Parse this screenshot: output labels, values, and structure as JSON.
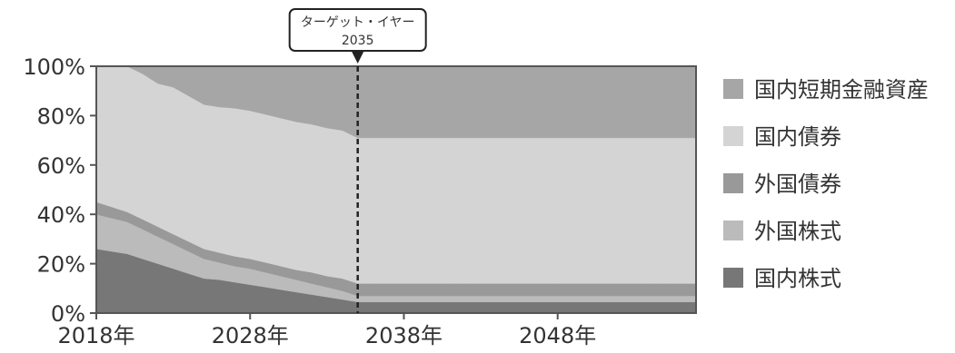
{
  "chart_data": {
    "type": "area",
    "stacked": true,
    "x_unit": "年",
    "x": [
      2018,
      2019,
      2020,
      2021,
      2022,
      2023,
      2024,
      2025,
      2026,
      2027,
      2028,
      2029,
      2030,
      2031,
      2032,
      2033,
      2034,
      2035,
      2036,
      2037,
      2038,
      2039,
      2040,
      2041,
      2042,
      2043,
      2044,
      2045,
      2046,
      2047,
      2048,
      2049,
      2050,
      2051,
      2052,
      2053,
      2054,
      2055,
      2056,
      2057
    ],
    "series": [
      {
        "name": "国内株式",
        "color": "#777777",
        "values": [
          26,
          25,
          24,
          22,
          20,
          18,
          16,
          14,
          13.5,
          12.5,
          11.5,
          10.5,
          9.5,
          8.5,
          7.5,
          6.5,
          5.5,
          4.5,
          4.5,
          4.5,
          4.5,
          4.5,
          4.5,
          4.5,
          4.5,
          4.5,
          4.5,
          4.5,
          4.5,
          4.5,
          4.5,
          4.5,
          4.5,
          4.5,
          4.5,
          4.5,
          4.5,
          4.5,
          4.5,
          4.5
        ]
      },
      {
        "name": "外国株式",
        "color": "#bbbbbb",
        "values": [
          14,
          13.5,
          13,
          12,
          11,
          10,
          9,
          8,
          7,
          6.5,
          6.5,
          6,
          5.5,
          5,
          4.5,
          4,
          3.5,
          2.5,
          2.5,
          2.5,
          2.5,
          2.5,
          2.5,
          2.5,
          2.5,
          2.5,
          2.5,
          2.5,
          2.5,
          2.5,
          2.5,
          2.5,
          2.5,
          2.5,
          2.5,
          2.5,
          2.5,
          2.5,
          2.5,
          2.5
        ]
      },
      {
        "name": "外国債券",
        "color": "#999999",
        "values": [
          5,
          4.5,
          4,
          4,
          4,
          4,
          4,
          4,
          4,
          4,
          4,
          4,
          4,
          4,
          4.5,
          4.5,
          5,
          5,
          5,
          5,
          5,
          5,
          5,
          5,
          5,
          5,
          5,
          5,
          5,
          5,
          5,
          5,
          5,
          5,
          5,
          5,
          5,
          5,
          5,
          5
        ]
      },
      {
        "name": "国内債券",
        "color": "#d4d4d4",
        "values": [
          55,
          57,
          59,
          59,
          58,
          59.5,
          59,
          58.5,
          59,
          60,
          60,
          60,
          60,
          60,
          60,
          60,
          60,
          59,
          59,
          59,
          59,
          59,
          59,
          59,
          59,
          59,
          59,
          59,
          59,
          59,
          59,
          59,
          59,
          59,
          59,
          59,
          59,
          59,
          59,
          59
        ]
      },
      {
        "name": "国内短期金融資産",
        "color": "#a6a6a6",
        "values": [
          0,
          0,
          0,
          3,
          7,
          8.5,
          12,
          15.5,
          16.5,
          17,
          18,
          19.5,
          21,
          22.5,
          23.5,
          25,
          26,
          29,
          29,
          29,
          29,
          29,
          29,
          29,
          29,
          29,
          29,
          29,
          29,
          29,
          29,
          29,
          29,
          29,
          29,
          29,
          29,
          29,
          29,
          29
        ]
      }
    ],
    "legend_order": [
      "国内短期金融資産",
      "国内債券",
      "外国債券",
      "外国株式",
      "国内株式"
    ],
    "x_ticks": [
      2018,
      2028,
      2038,
      2048
    ],
    "x_tick_labels": [
      "2018年",
      "2028年",
      "2038年",
      "2048年"
    ],
    "y_ticks": [
      0,
      20,
      40,
      60,
      80,
      100
    ],
    "y_tick_labels": [
      "0%",
      "20%",
      "40%",
      "60%",
      "80%",
      "100%"
    ],
    "xlim": [
      2018,
      2057
    ],
    "ylim": [
      0,
      100
    ],
    "grid": false,
    "legend_position": "right",
    "annotation": {
      "x": 2035,
      "label_line1": "ターゲット・イヤー",
      "label_line2": "2035"
    }
  }
}
